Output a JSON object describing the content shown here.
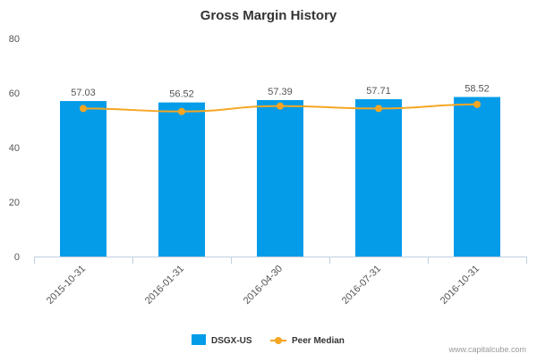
{
  "chart_data": {
    "type": "bar",
    "title": "Gross Margin History",
    "categories": [
      "2015-10-31",
      "2016-01-31",
      "2016-04-30",
      "2016-07-31",
      "2016-10-31"
    ],
    "series": [
      {
        "name": "DSGX-US",
        "kind": "bar",
        "color": "#049CE9",
        "values": [
          57.03,
          56.52,
          57.39,
          57.71,
          58.52
        ],
        "value_labels": [
          "57.03",
          "56.52",
          "57.39",
          "57.71",
          "58.52"
        ]
      },
      {
        "name": "Peer Median",
        "kind": "line",
        "color": "#F5A623",
        "values": [
          54.3,
          53.2,
          55.2,
          54.3,
          55.8
        ]
      }
    ],
    "y_ticks": [
      "0",
      "20",
      "40",
      "60",
      "80"
    ],
    "ylim": [
      0,
      80
    ],
    "xlabel": "",
    "ylabel": "",
    "grid": false,
    "legend_position": "bottom"
  },
  "credit": "www.capitalcube.com"
}
